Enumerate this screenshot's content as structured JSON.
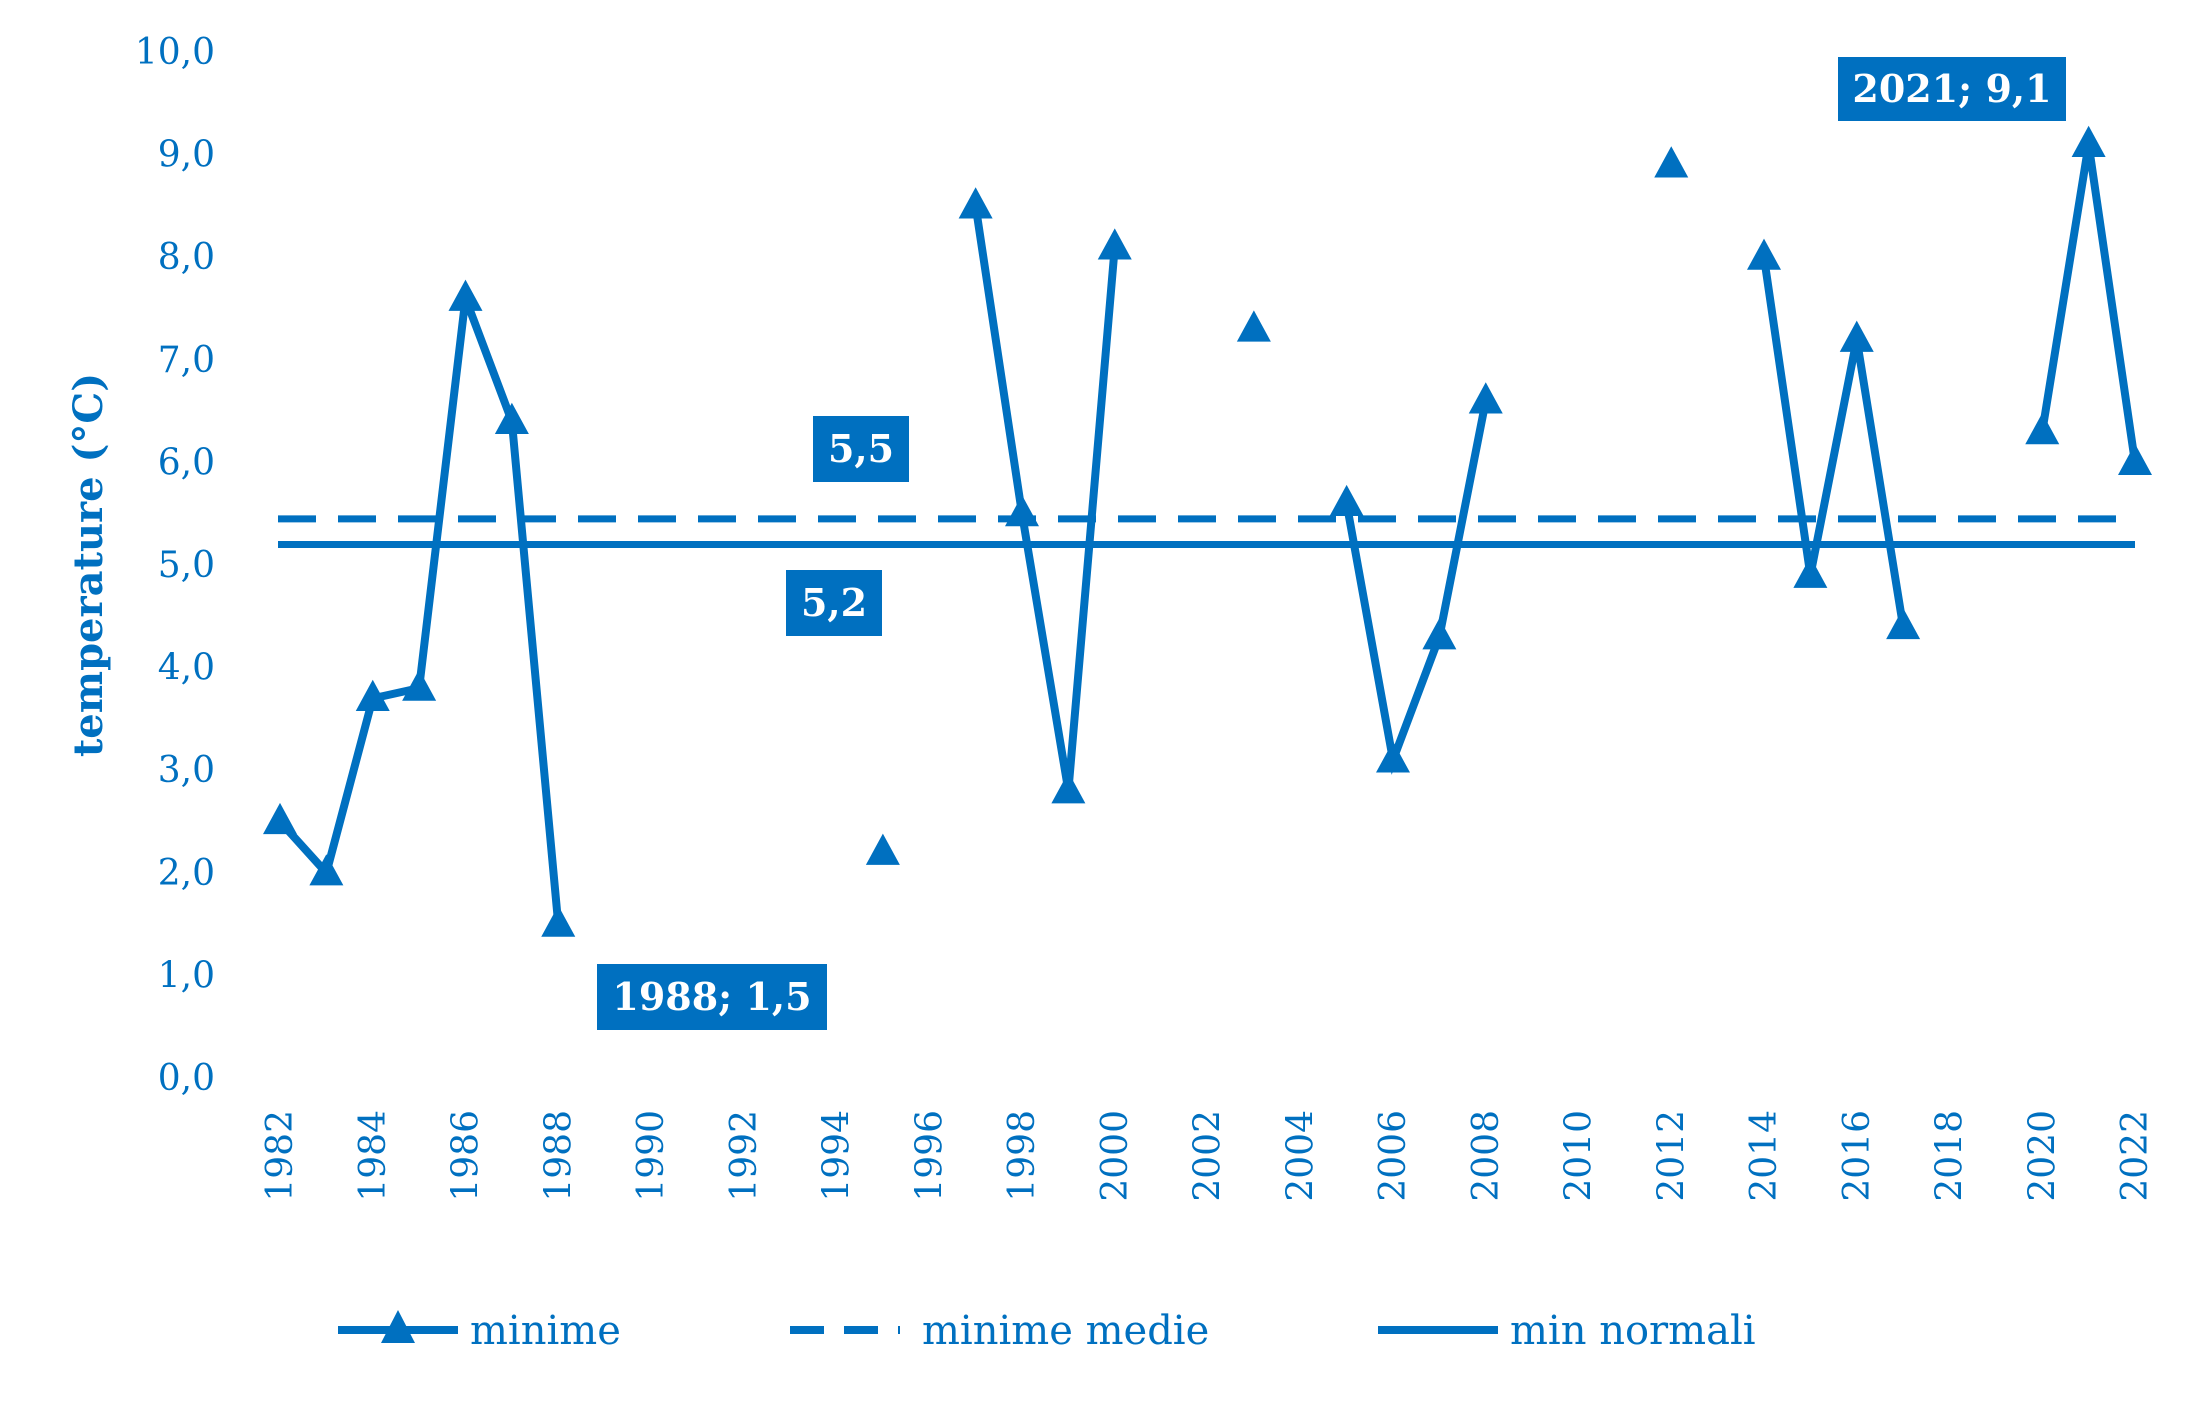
{
  "chart_data": {
    "type": "line",
    "title": "",
    "xlabel": "",
    "ylabel": "temperature (°C)",
    "ylim": [
      0,
      10
    ],
    "y_ticks": [
      "0,0",
      "1,0",
      "2,0",
      "3,0",
      "4,0",
      "5,0",
      "6,0",
      "7,0",
      "8,0",
      "9,0",
      "10,0"
    ],
    "x_ticks": [
      "1982",
      "1984",
      "1986",
      "1988",
      "1990",
      "1992",
      "1994",
      "1996",
      "1998",
      "2000",
      "2002",
      "2004",
      "2006",
      "2008",
      "2010",
      "2012",
      "2014",
      "2016",
      "2018",
      "2020",
      "2022"
    ],
    "x_range": [
      1982,
      2022
    ],
    "grid": false,
    "legend_position": "bottom",
    "color": "#0070c0",
    "series": [
      {
        "name": "minime",
        "style": "solid-triangle",
        "points": [
          [
            1982,
            2.5
          ],
          [
            1983,
            2.0
          ],
          [
            1984,
            3.7
          ],
          [
            1985,
            3.8
          ],
          [
            1986,
            7.6
          ],
          [
            1987,
            6.4
          ],
          [
            1988,
            1.5
          ],
          [
            1989,
            null
          ],
          [
            1990,
            null
          ],
          [
            1991,
            null
          ],
          [
            1992,
            null
          ],
          [
            1993,
            null
          ],
          [
            1994,
            null
          ],
          [
            1995,
            2.2
          ],
          [
            1996,
            null
          ],
          [
            1997,
            8.5
          ],
          [
            1998,
            5.5
          ],
          [
            1999,
            2.8
          ],
          [
            2000,
            8.1
          ],
          [
            2001,
            null
          ],
          [
            2002,
            null
          ],
          [
            2003,
            7.3
          ],
          [
            2004,
            null
          ],
          [
            2005,
            5.6
          ],
          [
            2006,
            3.1
          ],
          [
            2007,
            4.3
          ],
          [
            2008,
            6.6
          ],
          [
            2009,
            null
          ],
          [
            2010,
            null
          ],
          [
            2011,
            null
          ],
          [
            2012,
            8.9
          ],
          [
            2013,
            null
          ],
          [
            2014,
            8.0
          ],
          [
            2015,
            4.9
          ],
          [
            2016,
            7.2
          ],
          [
            2017,
            4.4
          ],
          [
            2018,
            null
          ],
          [
            2019,
            null
          ],
          [
            2020,
            6.3
          ],
          [
            2021,
            9.1
          ],
          [
            2022,
            6.0
          ]
        ]
      },
      {
        "name": "minime medie",
        "style": "dashed",
        "value": 5.45
      },
      {
        "name": "min normali",
        "style": "solid",
        "value": 5.2
      }
    ],
    "annotations": [
      {
        "label": "2021; 9,1",
        "anchor": "max"
      },
      {
        "label": "1988; 1,5",
        "anchor": "min"
      },
      {
        "label": "5,5",
        "anchor": "minime medie"
      },
      {
        "label": "5,2",
        "anchor": "min normali"
      }
    ]
  }
}
